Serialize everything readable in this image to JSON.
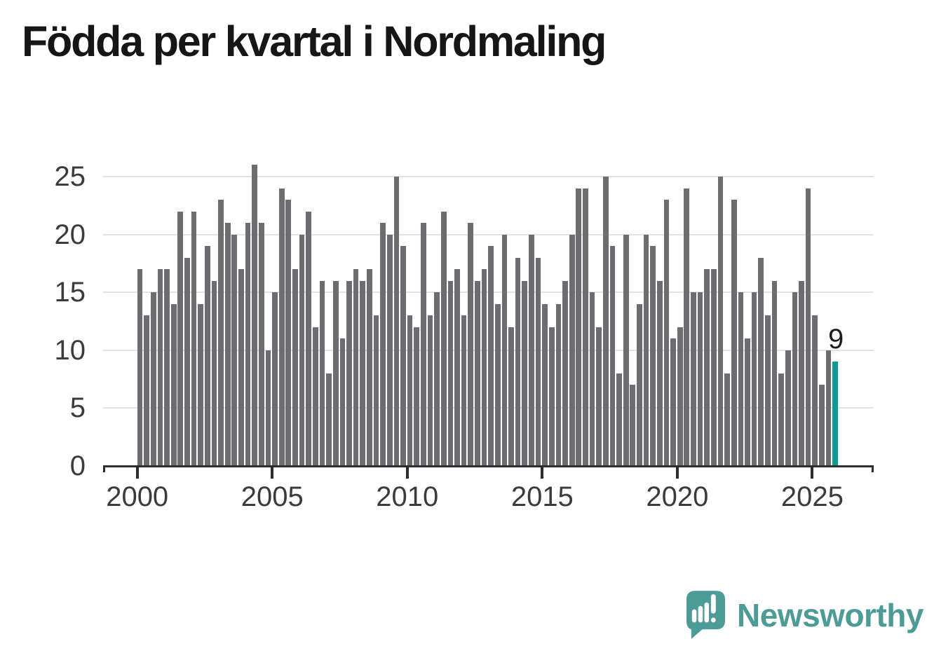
{
  "title": "Födda per kvartal i Nordmaling",
  "chart_data": {
    "type": "bar",
    "title": "Födda per kvartal i Nordmaling",
    "x_unit": "quarter",
    "x_start": "2000 Q1",
    "x_end": "2025 Q4",
    "x_tick_labels": [
      "2000",
      "2005",
      "2010",
      "2015",
      "2020",
      "2025"
    ],
    "y_tick_labels": [
      0,
      5,
      10,
      15,
      20,
      25
    ],
    "ylim": [
      0,
      26
    ],
    "grid": "horizontal",
    "values": [
      17,
      13,
      15,
      17,
      17,
      14,
      22,
      18,
      22,
      14,
      19,
      16,
      23,
      21,
      20,
      17,
      21,
      26,
      21,
      10,
      15,
      24,
      23,
      17,
      20,
      22,
      12,
      16,
      8,
      16,
      11,
      16,
      17,
      16,
      17,
      13,
      21,
      20,
      25,
      19,
      13,
      12,
      21,
      13,
      15,
      22,
      16,
      17,
      13,
      21,
      16,
      17,
      19,
      14,
      20,
      12,
      18,
      16,
      20,
      18,
      14,
      12,
      14,
      16,
      20,
      24,
      24,
      15,
      12,
      25,
      19,
      8,
      20,
      7,
      14,
      20,
      19,
      16,
      23,
      11,
      12,
      24,
      15,
      15,
      17,
      17,
      25,
      8,
      23,
      15,
      11,
      15,
      18,
      13,
      16,
      8,
      10,
      15,
      16,
      24,
      13,
      7,
      10,
      9
    ],
    "highlight": {
      "index": 103,
      "label": "9",
      "value": 9
    },
    "colors": {
      "bar": "#6d6d71",
      "highlight_bar": "#119a94",
      "gridline": "#e2e2e2",
      "axis": "#2d2d2d",
      "tick_label": "#3b3b3b",
      "title": "#161616"
    }
  },
  "logo": {
    "text": "Newsworthy",
    "color": "#4d9b97",
    "icon": "speech-bubble-bar-chart-icon"
  }
}
